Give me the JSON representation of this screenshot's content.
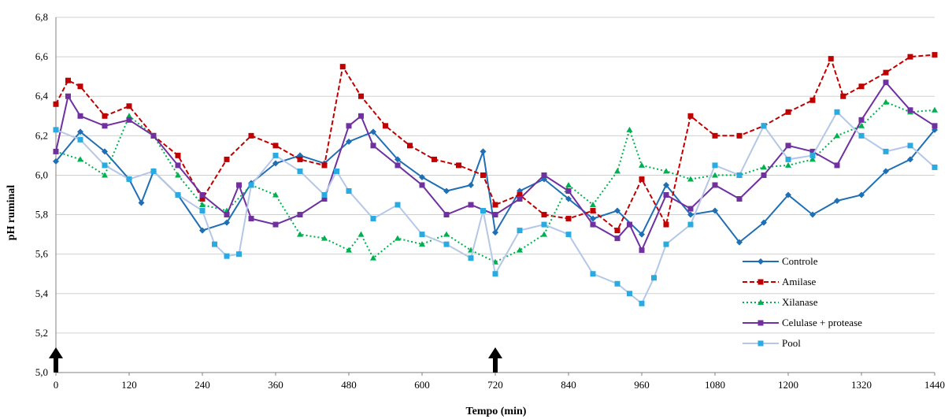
{
  "chart_data": {
    "type": "line",
    "title": "",
    "xlabel": "Tempo (min)",
    "ylabel": "pH ruminal",
    "xlim": [
      0,
      1440
    ],
    "ylim": [
      5.0,
      6.8
    ],
    "x_ticks": [
      "0",
      "120",
      "240",
      "360",
      "480",
      "600",
      "720",
      "840",
      "960",
      "1080",
      "1200",
      "1320",
      "1440"
    ],
    "y_ticks": [
      "5,0",
      "5,2",
      "5,4",
      "5,6",
      "5,8",
      "6,0",
      "6,2",
      "6,4",
      "6,6",
      "6,8"
    ],
    "grid": "horizontal",
    "legend_position": "lower-right",
    "annotations": [
      {
        "type": "arrow",
        "x": 0,
        "label": ""
      },
      {
        "type": "arrow",
        "x": 720,
        "label": ""
      }
    ],
    "series": [
      {
        "name": "Controle",
        "color": "#1f6fb5",
        "dash": "solid",
        "marker": "diamond",
        "x": [
          0,
          40,
          80,
          120,
          140,
          160,
          200,
          240,
          280,
          320,
          360,
          400,
          440,
          480,
          520,
          560,
          600,
          640,
          680,
          700,
          720,
          760,
          800,
          840,
          880,
          920,
          960,
          1000,
          1040,
          1080,
          1120,
          1160,
          1200,
          1240,
          1280,
          1320,
          1360,
          1400,
          1440
        ],
        "y": [
          6.07,
          6.22,
          6.12,
          5.98,
          5.86,
          6.02,
          5.9,
          5.72,
          5.76,
          5.96,
          6.06,
          6.1,
          6.06,
          6.17,
          6.22,
          6.08,
          5.99,
          5.92,
          5.95,
          6.12,
          5.71,
          5.92,
          5.98,
          5.88,
          5.78,
          5.82,
          5.7,
          5.95,
          5.8,
          5.82,
          5.66,
          5.76,
          5.9,
          5.8,
          5.87,
          5.9,
          6.02,
          6.08,
          6.23
        ]
      },
      {
        "name": "Amilase",
        "color": "#c00000",
        "dash": "dashed",
        "marker": "square",
        "x": [
          0,
          20,
          40,
          80,
          120,
          160,
          200,
          240,
          280,
          320,
          360,
          400,
          440,
          470,
          500,
          540,
          580,
          620,
          660,
          700,
          720,
          760,
          800,
          840,
          880,
          920,
          960,
          1000,
          1040,
          1080,
          1120,
          1160,
          1200,
          1240,
          1270,
          1290,
          1320,
          1360,
          1400,
          1440
        ],
        "y": [
          6.36,
          6.48,
          6.45,
          6.3,
          6.35,
          6.2,
          6.1,
          5.88,
          6.08,
          6.2,
          6.15,
          6.08,
          6.05,
          6.55,
          6.4,
          6.25,
          6.15,
          6.08,
          6.05,
          6.0,
          5.85,
          5.9,
          5.8,
          5.78,
          5.82,
          5.72,
          5.98,
          5.75,
          6.3,
          6.2,
          6.2,
          6.25,
          6.32,
          6.38,
          6.59,
          6.4,
          6.45,
          6.52,
          6.6,
          6.61
        ]
      },
      {
        "name": "Xilanase",
        "color": "#00b050",
        "dash": "dotted",
        "marker": "triangle",
        "x": [
          0,
          40,
          80,
          120,
          160,
          200,
          240,
          280,
          320,
          360,
          400,
          440,
          480,
          500,
          520,
          560,
          600,
          640,
          680,
          720,
          760,
          800,
          840,
          880,
          920,
          940,
          960,
          1000,
          1040,
          1080,
          1120,
          1160,
          1200,
          1240,
          1280,
          1320,
          1360,
          1400,
          1440
        ],
        "y": [
          6.12,
          6.08,
          6.0,
          6.3,
          6.2,
          6.0,
          5.85,
          5.82,
          5.95,
          5.9,
          5.7,
          5.68,
          5.62,
          5.7,
          5.58,
          5.68,
          5.65,
          5.7,
          5.62,
          5.56,
          5.62,
          5.7,
          5.95,
          5.85,
          6.02,
          6.23,
          6.05,
          6.02,
          5.98,
          6.0,
          6.0,
          6.04,
          6.05,
          6.08,
          6.2,
          6.25,
          6.37,
          6.32,
          6.33
        ]
      },
      {
        "name": "Celulase + protease",
        "color": "#7030a0",
        "dash": "solid",
        "marker": "square",
        "x": [
          0,
          20,
          40,
          80,
          120,
          160,
          200,
          240,
          280,
          300,
          320,
          360,
          400,
          440,
          480,
          500,
          520,
          560,
          600,
          640,
          680,
          720,
          760,
          800,
          840,
          880,
          920,
          940,
          960,
          1000,
          1040,
          1080,
          1120,
          1160,
          1200,
          1240,
          1280,
          1320,
          1360,
          1400,
          1440
        ],
        "y": [
          6.12,
          6.4,
          6.3,
          6.25,
          6.28,
          6.2,
          6.05,
          5.9,
          5.8,
          5.95,
          5.78,
          5.75,
          5.8,
          5.88,
          6.25,
          6.3,
          6.15,
          6.05,
          5.95,
          5.8,
          5.85,
          5.8,
          5.88,
          6.0,
          5.92,
          5.75,
          5.68,
          5.75,
          5.62,
          5.9,
          5.83,
          5.95,
          5.88,
          6.0,
          6.15,
          6.12,
          6.05,
          6.28,
          6.47,
          6.33,
          6.25
        ]
      },
      {
        "name": "Pool",
        "color": "#29abe2",
        "dash": "solid",
        "marker": "square",
        "x": [
          0,
          40,
          80,
          120,
          160,
          200,
          240,
          260,
          280,
          300,
          320,
          360,
          400,
          440,
          460,
          480,
          520,
          560,
          600,
          640,
          680,
          700,
          720,
          760,
          800,
          840,
          880,
          920,
          940,
          960,
          980,
          1000,
          1040,
          1080,
          1120,
          1160,
          1200,
          1240,
          1280,
          1320,
          1360,
          1400,
          1440
        ],
        "y": [
          6.23,
          6.18,
          6.05,
          5.98,
          6.02,
          5.9,
          5.82,
          5.65,
          5.59,
          5.6,
          5.95,
          6.1,
          6.02,
          5.9,
          6.02,
          5.92,
          5.78,
          5.85,
          5.7,
          5.65,
          5.58,
          5.82,
          5.5,
          5.72,
          5.75,
          5.7,
          5.5,
          5.45,
          5.4,
          5.35,
          5.48,
          5.65,
          5.75,
          6.05,
          6.0,
          6.25,
          6.08,
          6.1,
          6.32,
          6.2,
          6.12,
          6.15,
          6.04
        ]
      }
    ]
  }
}
